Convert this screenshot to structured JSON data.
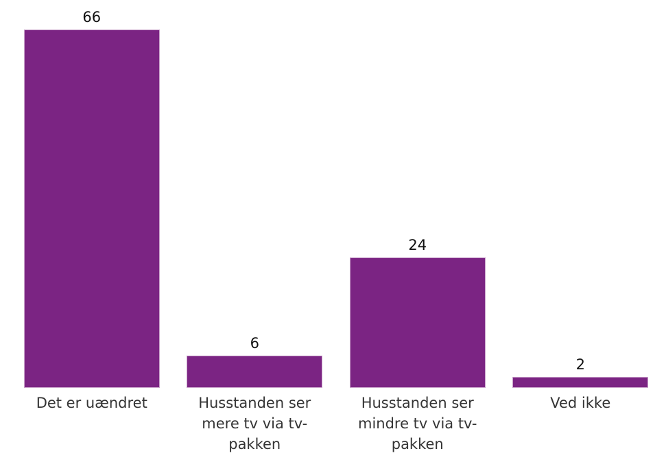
{
  "chart_data": {
    "type": "bar",
    "categories": [
      "Det er uændret",
      "Husstanden ser mere tv via tv-pakken",
      "Husstanden ser mindre tv via tv-pakken",
      "Ved ikke"
    ],
    "values": [
      66,
      6,
      24,
      2
    ],
    "value_labels": [
      "66",
      "6",
      "24",
      "2"
    ],
    "ylim": [
      0,
      71.5
    ],
    "grid": false,
    "legend": false,
    "bar_color": "#7b2483",
    "bar_edge_color": "#caa3cb",
    "value_label_color": "#111111",
    "category_label_color": "#343434",
    "background": "#ffffff"
  }
}
